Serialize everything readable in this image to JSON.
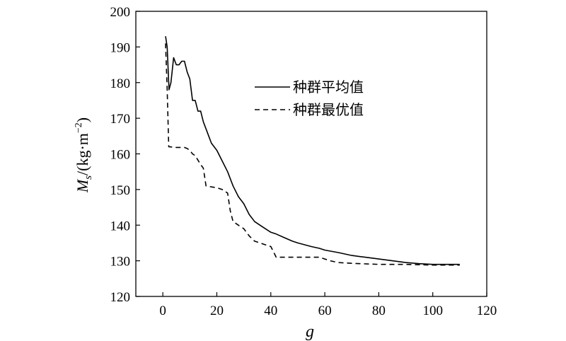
{
  "chart_data": {
    "type": "line",
    "xlabel": "g",
    "ylabel": "Ms/(kg·m⁻²)",
    "ylabel_parts": {
      "main": "M",
      "sub": "s",
      "units": "/(kg·m",
      "sup": "−2",
      "close": ")"
    },
    "xlim": [
      -10,
      120
    ],
    "ylim": [
      120,
      200
    ],
    "xticks": [
      0,
      20,
      40,
      60,
      80,
      100,
      120
    ],
    "yticks": [
      120,
      130,
      140,
      150,
      160,
      170,
      180,
      190,
      200
    ],
    "legend_position": "upper-right",
    "series": [
      {
        "name": "种群平均值",
        "style": "solid",
        "color": "#000000",
        "x": [
          1,
          1.6,
          2.3,
          3,
          4,
          5,
          6,
          7,
          8,
          9,
          10,
          11,
          12,
          13,
          14,
          15,
          16,
          17,
          18,
          19,
          20,
          22,
          24,
          26,
          28,
          30,
          32,
          34,
          36,
          38,
          40,
          42,
          45,
          48,
          50,
          55,
          58,
          60,
          65,
          70,
          75,
          80,
          85,
          90,
          95,
          100,
          105,
          110
        ],
        "y": [
          193,
          190,
          178,
          180,
          187,
          185,
          185,
          186,
          186,
          183,
          181,
          175,
          175,
          172,
          172,
          169,
          167,
          165,
          163,
          162,
          161,
          158,
          155,
          151,
          148,
          146,
          143,
          141,
          140,
          139,
          138,
          137.5,
          136.5,
          135.5,
          135,
          134,
          133.5,
          133,
          132.3,
          131.5,
          131,
          130.5,
          130,
          129.5,
          129.2,
          129,
          129,
          129
        ]
      },
      {
        "name": "种群最优值",
        "style": "dashed",
        "color": "#000000",
        "x": [
          1,
          1.6,
          2.2,
          5,
          8,
          9,
          10,
          11,
          12,
          14,
          15,
          16,
          20,
          22,
          24,
          25,
          26,
          28,
          30,
          32,
          34,
          36,
          38,
          40,
          42,
          45,
          50,
          55,
          58,
          60,
          62,
          65,
          70,
          80,
          90,
          100,
          110
        ],
        "y": [
          191,
          178,
          162,
          161.8,
          161.8,
          161.5,
          161,
          160,
          159.5,
          157,
          156,
          151,
          150.5,
          150,
          149,
          144,
          141,
          140,
          139,
          137,
          135.5,
          135,
          134.5,
          134,
          131,
          131,
          131,
          131,
          131,
          130.5,
          130,
          129.5,
          129.3,
          129,
          129,
          128.8,
          128.8
        ]
      }
    ]
  }
}
